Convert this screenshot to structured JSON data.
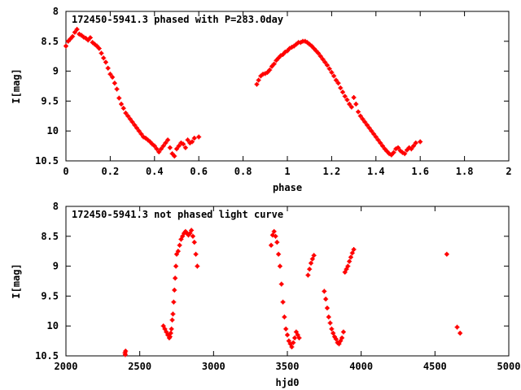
{
  "chart_data": [
    {
      "type": "scatter",
      "title": "172450-5941.3 phased with P=283.0day",
      "xlabel": "phase",
      "ylabel": "I[mag]",
      "xlim": [
        0,
        2
      ],
      "ylim": [
        10.5,
        8
      ],
      "y_inverted": true,
      "grid": false,
      "legend": "none",
      "xticks": [
        "0",
        "0.2",
        "0.4",
        "0.6",
        "0.8",
        "1",
        "1.2",
        "1.4",
        "1.6",
        "1.8",
        "2"
      ],
      "xtick_values": [
        0,
        0.2,
        0.4,
        0.6,
        0.8,
        1.0,
        1.2,
        1.4,
        1.6,
        1.8,
        2.0
      ],
      "yticks": [
        "8",
        "8.5",
        "9",
        "9.5",
        "10",
        "10.5"
      ],
      "ytick_values": [
        8,
        8.5,
        9,
        9.5,
        10,
        10.5
      ],
      "marker_color": "#ff0000",
      "series": [
        {
          "x": [
            0.0,
            0.01,
            0.02,
            0.03,
            0.04,
            0.05,
            0.06,
            0.07,
            0.08,
            0.09,
            0.1,
            0.11,
            0.12,
            0.13,
            0.14,
            0.15,
            0.16,
            0.17,
            0.18,
            0.19,
            0.2,
            0.21,
            0.22,
            0.23,
            0.24,
            0.25,
            0.26,
            0.27,
            0.28,
            0.29,
            0.3,
            0.31,
            0.32,
            0.33,
            0.34,
            0.35,
            0.36,
            0.37,
            0.38,
            0.39,
            0.4,
            0.41,
            0.42,
            0.43,
            0.44,
            0.45,
            0.46,
            0.47,
            0.48,
            0.49,
            0.5,
            0.51,
            0.52,
            0.53,
            0.54,
            0.55,
            0.56,
            0.57,
            0.58,
            0.6,
            0.862,
            0.87,
            0.88,
            0.89,
            0.9,
            0.91,
            0.92,
            0.93,
            0.94,
            0.95,
            0.96,
            0.97,
            0.98,
            0.99,
            1.0,
            1.01,
            1.02,
            1.03,
            1.04,
            1.05,
            1.06,
            1.07,
            1.08,
            1.09,
            1.1,
            1.11,
            1.12,
            1.13,
            1.14,
            1.15,
            1.16,
            1.17,
            1.18,
            1.19,
            1.2,
            1.21,
            1.22,
            1.23,
            1.24,
            1.25,
            1.26,
            1.27,
            1.28,
            1.29,
            1.3,
            1.31,
            1.32,
            1.33,
            1.34,
            1.35,
            1.36,
            1.37,
            1.38,
            1.39,
            1.4,
            1.41,
            1.42,
            1.43,
            1.44,
            1.45,
            1.46,
            1.47,
            1.48,
            1.49,
            1.5,
            1.51,
            1.52,
            1.53,
            1.54,
            1.55,
            1.56,
            1.57,
            1.58,
            1.6
          ],
          "y": [
            8.58,
            8.5,
            8.46,
            8.42,
            8.35,
            8.3,
            8.38,
            8.4,
            8.43,
            8.45,
            8.48,
            8.44,
            8.52,
            8.55,
            8.58,
            8.62,
            8.7,
            8.78,
            8.85,
            8.95,
            9.05,
            9.1,
            9.2,
            9.3,
            9.45,
            9.55,
            9.62,
            9.7,
            9.75,
            9.8,
            9.85,
            9.9,
            9.95,
            10.0,
            10.05,
            10.1,
            10.12,
            10.15,
            10.18,
            10.22,
            10.25,
            10.3,
            10.35,
            10.3,
            10.25,
            10.2,
            10.15,
            10.28,
            10.38,
            10.42,
            10.3,
            10.25,
            10.2,
            10.22,
            10.28,
            10.15,
            10.2,
            10.18,
            10.12,
            10.1,
            9.22,
            9.15,
            9.08,
            9.05,
            9.04,
            9.02,
            8.98,
            8.92,
            8.88,
            8.82,
            8.78,
            8.74,
            8.72,
            8.68,
            8.66,
            8.62,
            8.6,
            8.58,
            8.55,
            8.52,
            8.52,
            8.5,
            8.5,
            8.52,
            8.55,
            8.58,
            8.62,
            8.66,
            8.7,
            8.75,
            8.8,
            8.85,
            8.9,
            8.96,
            9.02,
            9.08,
            9.15,
            9.2,
            9.28,
            9.35,
            9.42,
            9.48,
            9.55,
            9.6,
            9.44,
            9.55,
            9.68,
            9.75,
            9.8,
            9.85,
            9.9,
            9.95,
            10.0,
            10.05,
            10.1,
            10.15,
            10.2,
            10.25,
            10.3,
            10.34,
            10.38,
            10.4,
            10.36,
            10.3,
            10.28,
            10.33,
            10.36,
            10.38,
            10.32,
            10.28,
            10.3,
            10.25,
            10.2,
            10.18
          ],
          "name": ""
        }
      ]
    },
    {
      "type": "scatter",
      "title": "172450-5941.3 not phased light curve",
      "xlabel": "hjd0",
      "ylabel": "I[mag]",
      "xlim": [
        2000,
        5000
      ],
      "ylim": [
        10.5,
        8
      ],
      "y_inverted": true,
      "grid": false,
      "legend": "none",
      "xticks": [
        "2000",
        "2500",
        "3000",
        "3500",
        "4000",
        "4500",
        "5000"
      ],
      "xtick_values": [
        2000,
        2500,
        3000,
        3500,
        4000,
        4500,
        5000
      ],
      "yticks": [
        "8",
        "8.5",
        "9",
        "9.5",
        "10",
        "10.5"
      ],
      "ytick_values": [
        8,
        8.5,
        9,
        9.5,
        10,
        10.5
      ],
      "marker_color": "#ff0000",
      "series": [
        {
          "x": [
            2400,
            2402,
            2404,
            2660,
            2670,
            2680,
            2690,
            2700,
            2705,
            2710,
            2715,
            2720,
            2725,
            2730,
            2735,
            2740,
            2745,
            2750,
            2760,
            2770,
            2780,
            2790,
            2800,
            2810,
            2820,
            2830,
            2840,
            2850,
            2860,
            2870,
            2880,
            2890,
            3390,
            3400,
            3410,
            3420,
            3430,
            3440,
            3450,
            3460,
            3470,
            3480,
            3490,
            3500,
            3510,
            3520,
            3530,
            3540,
            3550,
            3560,
            3570,
            3580,
            3640,
            3650,
            3660,
            3670,
            3680,
            3750,
            3760,
            3770,
            3780,
            3790,
            3800,
            3810,
            3820,
            3830,
            3840,
            3850,
            3860,
            3870,
            3880,
            3890,
            3900,
            3910,
            3920,
            3930,
            3940,
            3950,
            4580,
            4650,
            4670
          ],
          "y": [
            10.45,
            10.48,
            10.42,
            10.0,
            10.05,
            10.1,
            10.15,
            10.2,
            10.18,
            10.12,
            10.05,
            9.9,
            9.8,
            9.6,
            9.4,
            9.2,
            9.0,
            8.8,
            8.75,
            8.65,
            8.55,
            8.5,
            8.45,
            8.42,
            8.45,
            8.48,
            8.45,
            8.4,
            8.5,
            8.6,
            8.8,
            9.0,
            8.65,
            8.48,
            8.42,
            8.5,
            8.6,
            8.8,
            9.0,
            9.3,
            9.6,
            9.85,
            10.05,
            10.15,
            10.25,
            10.3,
            10.35,
            10.28,
            10.2,
            10.1,
            10.15,
            10.2,
            9.15,
            9.05,
            8.95,
            8.88,
            8.82,
            9.42,
            9.55,
            9.7,
            9.85,
            9.95,
            10.05,
            10.12,
            10.18,
            10.22,
            10.28,
            10.3,
            10.25,
            10.2,
            10.1,
            9.1,
            9.05,
            9.0,
            8.92,
            8.85,
            8.78,
            8.72,
            8.8,
            10.02,
            10.12
          ],
          "name": ""
        }
      ]
    }
  ]
}
